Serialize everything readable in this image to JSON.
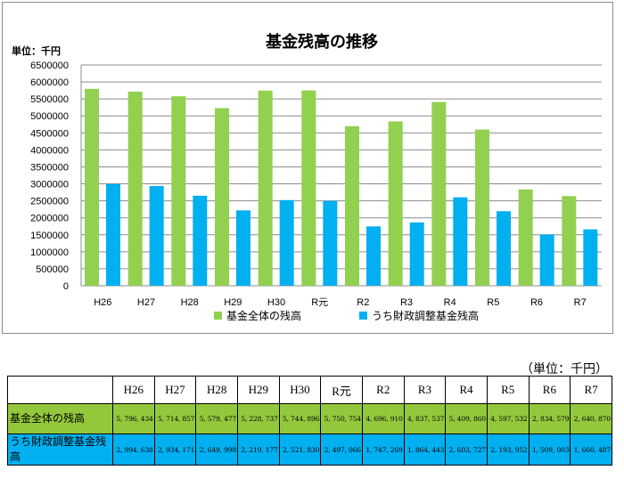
{
  "chart_data": {
    "type": "bar",
    "title": "基金残高の推移",
    "unit_label": "単位：千円",
    "categories": [
      "H26",
      "H27",
      "H28",
      "H29",
      "H30",
      "R元",
      "R2",
      "R3",
      "R4",
      "R5",
      "R6",
      "R7"
    ],
    "ylim": [
      0,
      6500000
    ],
    "yticks": [
      0,
      500000,
      1000000,
      1500000,
      2000000,
      2500000,
      3000000,
      3500000,
      4000000,
      4500000,
      5000000,
      5500000,
      6000000,
      6500000
    ],
    "grid": true,
    "legend_position": "bottom",
    "series": [
      {
        "name": "基金全体の残高",
        "color": "#92d050",
        "values": [
          5796434,
          5714857,
          5579477,
          5228737,
          5744896,
          5750754,
          4696910,
          4837537,
          5409860,
          4597532,
          2834579,
          2640870
        ]
      },
      {
        "name": "うち財政調整基金残高",
        "color": "#00b0f0",
        "values": [
          2994638,
          2934171,
          2649998,
          2219177,
          2521830,
          2497066,
          1747269,
          1864443,
          2603727,
          2193952,
          1509003,
          1660487
        ]
      }
    ]
  },
  "table": {
    "unit_note": "（単位：千円）",
    "headers": [
      "H26",
      "H27",
      "H28",
      "H29",
      "H30",
      "R元",
      "R2",
      "R3",
      "R4",
      "R5",
      "R6",
      "R7"
    ],
    "rows": [
      {
        "label": "基金全体の残高",
        "cells": [
          "5, 796, 434",
          "5, 714, 857",
          "5, 579, 477",
          "5, 228, 737",
          "5, 744, 896",
          "5, 750, 754",
          "4, 696, 910",
          "4, 837, 537",
          "5, 409, 860",
          "4, 597, 532",
          "2, 834, 579",
          "2, 640, 870"
        ]
      },
      {
        "label": "うち財政調整基金残高",
        "cells": [
          "2, 994, 638",
          "2, 934, 171",
          "2, 649, 998",
          "2, 219, 177",
          "2, 521, 830",
          "2, 497, 066",
          "1, 747, 269",
          "1, 864, 443",
          "2, 603, 727",
          "2, 193, 952",
          "1, 509, 003",
          "1, 660, 487"
        ]
      }
    ]
  }
}
